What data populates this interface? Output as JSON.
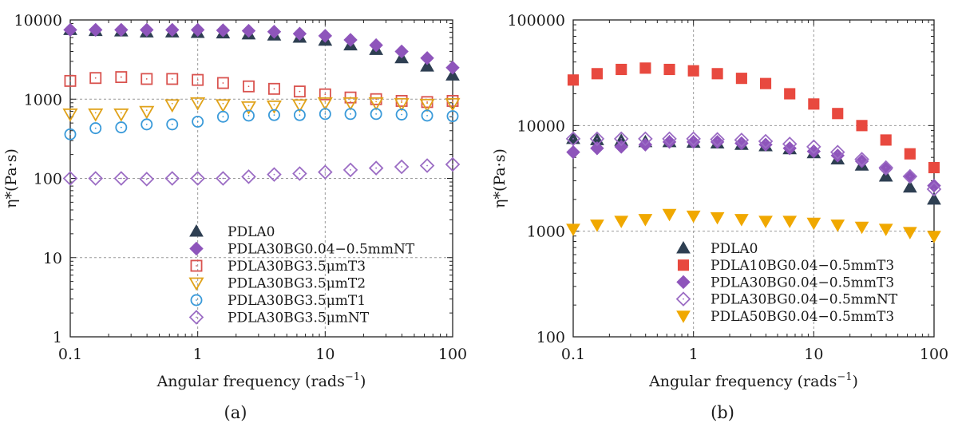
{
  "chart_data": [
    {
      "panel_label": "(a)",
      "type": "scatter",
      "xlabel": "Angular frequency (rads",
      "xlabel_superscript": "−1",
      "xlabel_suffix": ")",
      "ylabel": "η*(Pa·s)",
      "xscale": "log",
      "yscale": "log",
      "xlim": [
        0.1,
        100
      ],
      "ylim": [
        1,
        10000
      ],
      "xticks": [
        "0.1",
        "1",
        "10",
        "100"
      ],
      "yticks": [
        "1",
        "10",
        "100",
        "1000",
        "10000"
      ],
      "grid": "dashed",
      "legend_position": "bottom-right",
      "x": [
        0.1,
        0.158,
        0.251,
        0.398,
        0.631,
        1.0,
        1.58,
        2.51,
        3.98,
        6.31,
        10.0,
        15.8,
        25.1,
        39.8,
        63.1,
        100.0
      ],
      "series": [
        {
          "name": "PDLA0",
          "marker": "triangle-up",
          "filled": true,
          "color": "#2e3f52",
          "values": [
            7500,
            7300,
            7200,
            7000,
            7000,
            6900,
            6800,
            6600,
            6400,
            6000,
            5500,
            4800,
            4200,
            3300,
            2600,
            2000
          ]
        },
        {
          "name": "PDLA30BG0.04−0.5mmNT",
          "marker": "diamond",
          "filled": true,
          "color": "#8e55bb",
          "values": [
            7500,
            7500,
            7500,
            7500,
            7500,
            7500,
            7400,
            7300,
            7100,
            6700,
            6300,
            5600,
            4800,
            4000,
            3300,
            2500
          ]
        },
        {
          "name": "PDLA30BG3.5μmT3",
          "marker": "square",
          "filled": false,
          "color": "#d9534f",
          "values": [
            1700,
            1850,
            1900,
            1800,
            1800,
            1750,
            1600,
            1450,
            1350,
            1250,
            1150,
            1050,
            1000,
            950,
            920,
            950
          ]
        },
        {
          "name": "PDLA30BG3.5μmT2",
          "marker": "triangle-down",
          "filled": false,
          "color": "#e0a21a",
          "values": [
            650,
            650,
            650,
            700,
            850,
            900,
            850,
            800,
            820,
            850,
            900,
            900,
            900,
            880,
            860,
            880
          ]
        },
        {
          "name": "PDLA30BG3.5μmT1",
          "marker": "circle",
          "filled": false,
          "color": "#3a9ad9",
          "values": [
            360,
            430,
            440,
            480,
            480,
            520,
            600,
            620,
            630,
            630,
            650,
            650,
            650,
            640,
            620,
            610
          ]
        },
        {
          "name": "PDLA30BG3.5μmNT",
          "marker": "diamond",
          "filled": false,
          "color": "#9b6cc4",
          "values": [
            100,
            100,
            100,
            98,
            100,
            100,
            100,
            105,
            112,
            115,
            120,
            128,
            135,
            140,
            145,
            150
          ]
        }
      ]
    },
    {
      "panel_label": "(b)",
      "type": "scatter",
      "xlabel": "Angular frequency (rads",
      "xlabel_superscript": "−1",
      "xlabel_suffix": ")",
      "ylabel": "η*(Pa·s)",
      "xscale": "log",
      "yscale": "log",
      "xlim": [
        0.1,
        100
      ],
      "ylim": [
        100,
        100000
      ],
      "xticks": [
        "0.1",
        "1",
        "10",
        "100"
      ],
      "yticks": [
        "100",
        "1000",
        "10000",
        "100000"
      ],
      "grid": "dashed",
      "legend_position": "bottom-right",
      "x": [
        0.1,
        0.158,
        0.251,
        0.398,
        0.631,
        1.0,
        1.58,
        2.51,
        3.98,
        6.31,
        10.0,
        15.8,
        25.1,
        39.8,
        63.1,
        100.0
      ],
      "series": [
        {
          "name": "PDLA0",
          "marker": "triangle-up",
          "filled": true,
          "color": "#2e3f52",
          "values": [
            7500,
            7300,
            7200,
            7000,
            7000,
            6900,
            6800,
            6600,
            6400,
            6000,
            5500,
            4800,
            4200,
            3300,
            2600,
            2000
          ]
        },
        {
          "name": "PDLA10BG0.04−0.5mmT3",
          "marker": "square",
          "filled": true,
          "color": "#e8493f",
          "values": [
            27000,
            31000,
            34000,
            35000,
            34000,
            33000,
            31000,
            28000,
            25000,
            20000,
            16000,
            13000,
            10000,
            7300,
            5400,
            4000
          ]
        },
        {
          "name": "PDLA30BG0.04−0.5mmT3",
          "marker": "diamond",
          "filled": true,
          "color": "#8e55bb",
          "values": [
            5600,
            6100,
            6300,
            6600,
            7000,
            7000,
            7000,
            6800,
            6600,
            6100,
            5700,
            5200,
            4600,
            3900,
            3300,
            2700
          ]
        },
        {
          "name": "PDLA30BG0.04−0.5mmNT",
          "marker": "diamond",
          "filled": false,
          "color": "#9b6cc4",
          "values": [
            7500,
            7500,
            7500,
            7500,
            7500,
            7500,
            7400,
            7300,
            7100,
            6700,
            6300,
            5600,
            4800,
            4000,
            3300,
            2500
          ]
        },
        {
          "name": "PDLA50BG0.04−0.5mmT3",
          "marker": "triangle-down",
          "filled": true,
          "color": "#f0a800",
          "values": [
            1050,
            1150,
            1250,
            1300,
            1450,
            1400,
            1350,
            1300,
            1250,
            1250,
            1200,
            1150,
            1100,
            1050,
            980,
            900
          ]
        }
      ]
    }
  ]
}
